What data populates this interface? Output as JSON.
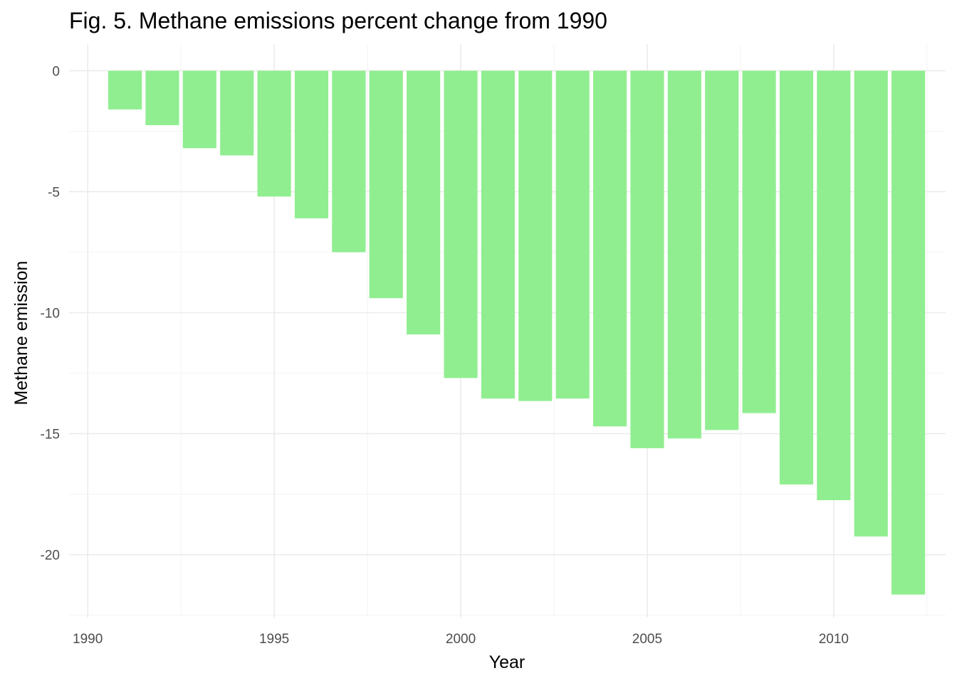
{
  "chart_data": {
    "type": "bar",
    "title": "Fig. 5. Methane emissions percent change from 1990",
    "xlabel": "Year",
    "ylabel": "Methane emission",
    "x": [
      1991,
      1992,
      1993,
      1994,
      1995,
      1996,
      1997,
      1998,
      1999,
      2000,
      2001,
      2002,
      2003,
      2004,
      2005,
      2006,
      2007,
      2008,
      2009,
      2010,
      2011,
      2012
    ],
    "values": [
      -1.6,
      -2.25,
      -3.2,
      -3.5,
      -5.2,
      -6.1,
      -7.5,
      -9.4,
      -10.9,
      -12.7,
      -13.55,
      -13.65,
      -13.55,
      -14.7,
      -15.6,
      -15.2,
      -14.85,
      -14.15,
      -17.1,
      -17.75,
      -19.25,
      -21.65
    ],
    "xticks": [
      1990,
      1995,
      2000,
      2005,
      2010
    ],
    "yticks": [
      0,
      -5,
      -10,
      -15,
      -20
    ],
    "xlim": [
      1989.5,
      2013.0
    ],
    "ylim": [
      -22.6,
      1.1
    ],
    "bar_color": "#90ee90",
    "grid": true
  }
}
